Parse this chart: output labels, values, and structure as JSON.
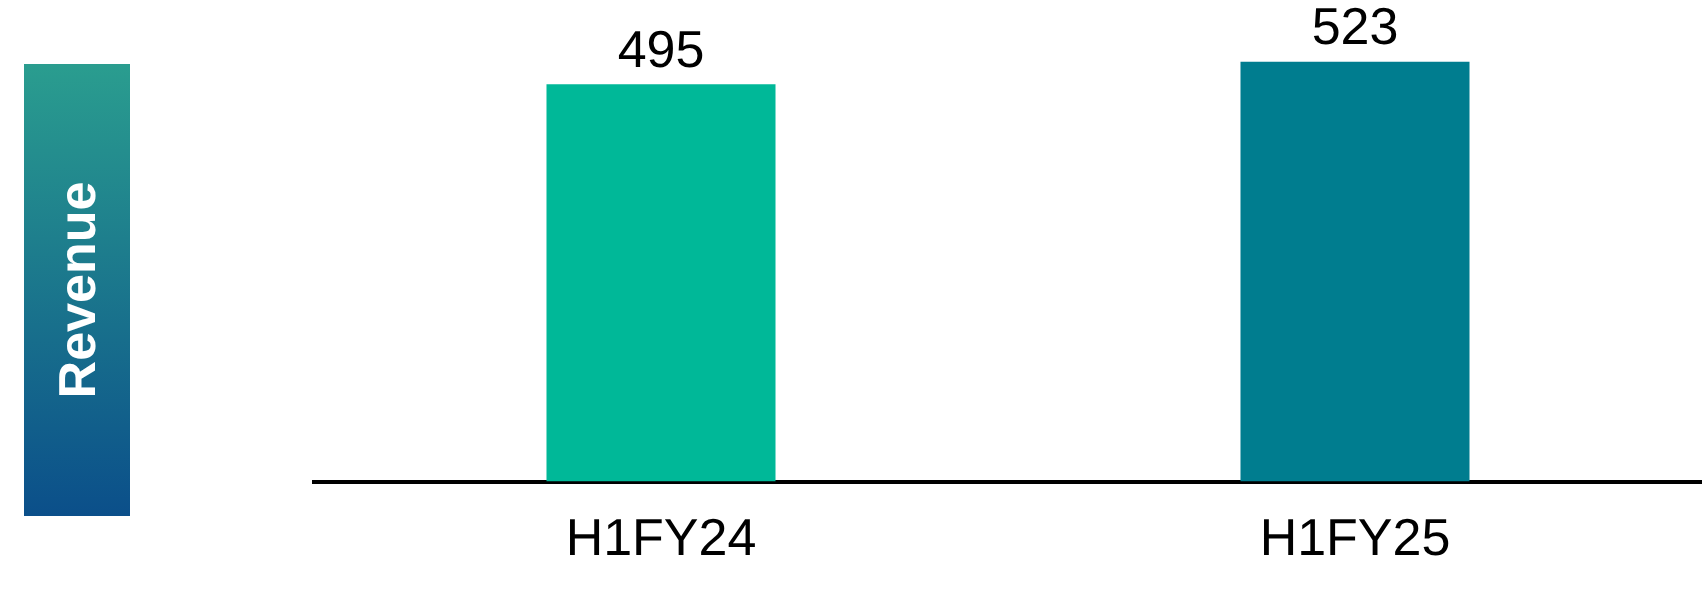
{
  "chart_data": {
    "type": "bar",
    "ylabel": "Revenue",
    "categories": [
      "H1FY24",
      "H1FY25"
    ],
    "values": [
      495,
      523
    ],
    "colors": [
      "#00b898",
      "#007d8f"
    ],
    "data_labels": true,
    "grid": false,
    "legend": false,
    "tick_labels": "x"
  }
}
